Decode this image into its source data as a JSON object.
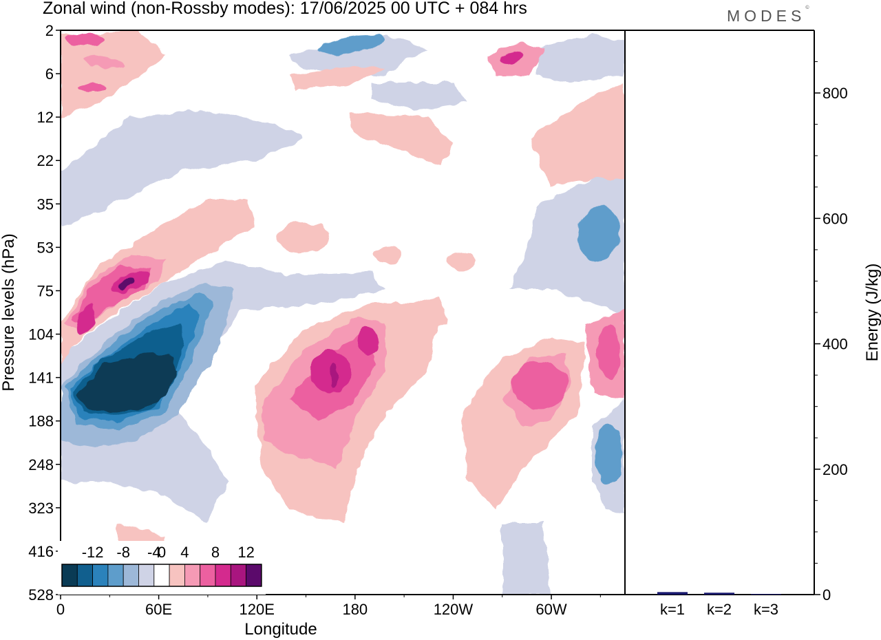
{
  "header": {
    "title": "Zonal wind (non-Rossby modes):  17/06/2025  00 UTC  + 084 hrs",
    "logo": "MODES"
  },
  "chart_data": [
    {
      "type": "heatmap",
      "title": "Zonal wind (non-Rossby modes):  17/06/2025  00 UTC  + 084 hrs",
      "xlabel": "Longitude",
      "ylabel": "Pressure levels (hPa)",
      "x_ticks": [
        "0",
        "60E",
        "120E",
        "180",
        "120W",
        "60W"
      ],
      "x_tick_degrees": [
        0,
        60,
        120,
        180,
        240,
        300
      ],
      "xlim": [
        0,
        345
      ],
      "y_ticks": [
        "2",
        "6",
        "12",
        "22",
        "35",
        "53",
        "75",
        "104",
        "141",
        "188",
        "248",
        "323",
        "416",
        "528"
      ],
      "colorbar": {
        "tick_labels": [
          "-12",
          "-8",
          "-4",
          "0",
          "4",
          "8",
          "12"
        ],
        "levels": [
          -14,
          -12,
          -10,
          -8,
          -6,
          -4,
          -2,
          2,
          4,
          6,
          8,
          10,
          12,
          14
        ],
        "colors": [
          "#0a3b55",
          "#115f8e",
          "#2b82bb",
          "#5e9dcb",
          "#9db8d8",
          "#cfd3e6",
          "#ffffff",
          "#f7c3c0",
          "#f59ab5",
          "#ec60a0",
          "#d42a8e",
          "#a9157f",
          "#5b0a6b"
        ]
      },
      "features": [
        {
          "name": "blue core",
          "value": -14,
          "lon": 40,
          "level": "141"
        },
        {
          "name": "pink core",
          "value": 12,
          "lon": 40,
          "level": "75"
        },
        {
          "name": "pink band",
          "value": 10,
          "lon": 175,
          "level": "141"
        },
        {
          "name": "pink band",
          "value": 8,
          "lon": 290,
          "level": "141"
        }
      ]
    },
    {
      "type": "bar",
      "categories": [
        "k=1",
        "k=2",
        "k=3"
      ],
      "values": [
        4,
        3,
        1
      ],
      "ylabel": "Energy (J/kg)",
      "y_ticks": [
        "0",
        "200",
        "400",
        "600",
        "800"
      ],
      "ylim": [
        0,
        900
      ],
      "bar_color": "#1a1a6e"
    }
  ]
}
